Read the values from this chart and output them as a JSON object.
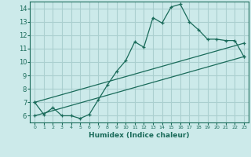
{
  "xlabel": "Humidex (Indice chaleur)",
  "bg_color": "#cceaea",
  "grid_color": "#aacfcf",
  "line_color": "#1a6b5a",
  "line1_x": [
    0,
    1,
    2,
    3,
    4,
    5,
    6,
    7,
    8,
    9,
    10,
    11,
    12,
    13,
    14,
    15,
    16,
    17,
    18,
    19,
    20,
    21,
    22,
    23
  ],
  "line1_y": [
    7.0,
    6.1,
    6.6,
    6.0,
    6.0,
    5.8,
    6.1,
    7.2,
    8.3,
    9.3,
    10.1,
    11.5,
    11.1,
    13.3,
    12.9,
    14.1,
    14.3,
    13.0,
    12.4,
    11.7,
    11.7,
    11.6,
    11.6,
    10.4
  ],
  "line2_x": [
    0,
    23
  ],
  "line2_y": [
    7.0,
    11.4
  ],
  "line3_x": [
    0,
    23
  ],
  "line3_y": [
    6.0,
    10.4
  ],
  "xlim": [
    -0.5,
    23.5
  ],
  "ylim": [
    5.5,
    14.5
  ],
  "yticks": [
    6,
    7,
    8,
    9,
    10,
    11,
    12,
    13,
    14
  ],
  "xticks": [
    0,
    1,
    2,
    3,
    4,
    5,
    6,
    7,
    8,
    9,
    10,
    11,
    12,
    13,
    14,
    15,
    16,
    17,
    18,
    19,
    20,
    21,
    22,
    23
  ]
}
